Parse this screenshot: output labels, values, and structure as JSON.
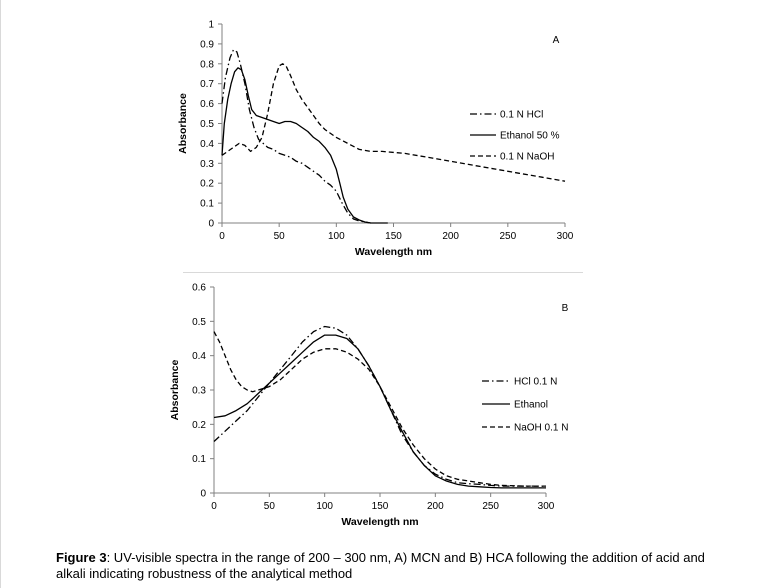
{
  "caption": {
    "label": "Figure 3",
    "text": ": UV-visible spectra in the range of 200 – 300 nm, A) MCN and B) HCA following the addition of acid and alkali indicating robustness of the analytical method"
  },
  "chart_data": [
    {
      "type": "line",
      "panel_label": "A",
      "xlabel": "Wavelength nm",
      "ylabel": "Absorbance",
      "xlim": [
        0,
        300
      ],
      "ylim": [
        0,
        1
      ],
      "xticks": [
        "0",
        "50",
        "100",
        "150",
        "200",
        "250",
        "300"
      ],
      "yticks": [
        "0",
        "0.1",
        "0.2",
        "0.3",
        "0.4",
        "0.5",
        "0.6",
        "0.7",
        "0.8",
        "0.9",
        "1"
      ],
      "grid": false,
      "legend_position": "right",
      "series": [
        {
          "name": "0.1 N HCl",
          "style": "dashdot",
          "color": "#000000",
          "x": [
            0,
            3,
            7,
            10,
            13,
            16,
            20,
            24,
            28,
            32,
            36,
            40,
            45,
            50,
            55,
            60,
            65,
            70,
            75,
            80,
            85,
            90,
            95,
            100,
            105,
            110,
            115,
            120,
            125,
            130
          ],
          "y": [
            0.6,
            0.73,
            0.83,
            0.87,
            0.86,
            0.8,
            0.7,
            0.57,
            0.48,
            0.42,
            0.4,
            0.38,
            0.37,
            0.35,
            0.34,
            0.33,
            0.31,
            0.3,
            0.28,
            0.26,
            0.24,
            0.21,
            0.19,
            0.16,
            0.1,
            0.05,
            0.02,
            0.01,
            0.005,
            0
          ]
        },
        {
          "name": "Ethanol 50 %",
          "style": "solid",
          "color": "#000000",
          "x": [
            0,
            2,
            5,
            8,
            11,
            14,
            17,
            20,
            23,
            26,
            30,
            35,
            40,
            45,
            50,
            55,
            60,
            65,
            70,
            75,
            80,
            85,
            90,
            95,
            100,
            103,
            106,
            110,
            115,
            120,
            125,
            130,
            140,
            145
          ],
          "y": [
            0.34,
            0.5,
            0.62,
            0.7,
            0.76,
            0.78,
            0.77,
            0.72,
            0.64,
            0.57,
            0.54,
            0.53,
            0.52,
            0.51,
            0.5,
            0.51,
            0.51,
            0.5,
            0.48,
            0.46,
            0.43,
            0.41,
            0.38,
            0.34,
            0.27,
            0.2,
            0.13,
            0.07,
            0.03,
            0.015,
            0.005,
            0,
            0,
            0
          ]
        },
        {
          "name": "0.1 N NaOH",
          "style": "dashed",
          "color": "#000000",
          "x": [
            0,
            5,
            10,
            15,
            20,
            25,
            30,
            35,
            40,
            45,
            50,
            53,
            56,
            60,
            65,
            70,
            75,
            80,
            85,
            90,
            100,
            110,
            120,
            130,
            140,
            160,
            180,
            200,
            220,
            240,
            260,
            280,
            300
          ],
          "y": [
            0.34,
            0.36,
            0.38,
            0.4,
            0.39,
            0.36,
            0.38,
            0.43,
            0.55,
            0.7,
            0.79,
            0.8,
            0.79,
            0.74,
            0.67,
            0.62,
            0.58,
            0.54,
            0.5,
            0.47,
            0.43,
            0.4,
            0.37,
            0.36,
            0.36,
            0.35,
            0.33,
            0.31,
            0.29,
            0.27,
            0.25,
            0.23,
            0.21
          ]
        }
      ]
    },
    {
      "type": "line",
      "panel_label": "B",
      "xlabel": "Wavelength nm",
      "ylabel": "Absorbance",
      "xlim": [
        0,
        300
      ],
      "ylim": [
        0,
        0.6
      ],
      "xticks": [
        "0",
        "50",
        "100",
        "150",
        "200",
        "250",
        "300"
      ],
      "yticks": [
        "0",
        "0.1",
        "0.2",
        "0.3",
        "0.4",
        "0.5",
        "0.6"
      ],
      "grid": false,
      "legend_position": "right",
      "series": [
        {
          "name": "HCl 0.1 N",
          "style": "dashdot",
          "color": "#000000",
          "x": [
            0,
            10,
            20,
            30,
            40,
            50,
            60,
            70,
            80,
            90,
            100,
            110,
            120,
            130,
            140,
            150,
            160,
            170,
            180,
            190,
            200,
            210,
            220,
            230,
            240,
            250,
            260,
            280,
            300
          ],
          "y": [
            0.15,
            0.18,
            0.21,
            0.24,
            0.28,
            0.32,
            0.36,
            0.4,
            0.44,
            0.47,
            0.485,
            0.48,
            0.46,
            0.42,
            0.37,
            0.31,
            0.24,
            0.17,
            0.12,
            0.08,
            0.055,
            0.04,
            0.03,
            0.027,
            0.025,
            0.022,
            0.02,
            0.02,
            0.02
          ]
        },
        {
          "name": "Ethanol",
          "style": "solid",
          "color": "#000000",
          "x": [
            0,
            10,
            20,
            30,
            40,
            50,
            60,
            70,
            80,
            90,
            100,
            110,
            120,
            130,
            140,
            150,
            160,
            170,
            180,
            190,
            200,
            210,
            220,
            230,
            240,
            250,
            260,
            280,
            300
          ],
          "y": [
            0.22,
            0.225,
            0.24,
            0.26,
            0.29,
            0.32,
            0.35,
            0.38,
            0.41,
            0.44,
            0.46,
            0.46,
            0.45,
            0.42,
            0.37,
            0.31,
            0.24,
            0.18,
            0.12,
            0.08,
            0.05,
            0.035,
            0.025,
            0.02,
            0.018,
            0.016,
            0.015,
            0.015,
            0.015
          ]
        },
        {
          "name": "NaOH 0.1 N",
          "style": "dashed",
          "color": "#000000",
          "x": [
            0,
            5,
            10,
            15,
            20,
            25,
            30,
            35,
            40,
            50,
            60,
            70,
            80,
            90,
            100,
            110,
            120,
            130,
            140,
            150,
            160,
            170,
            180,
            190,
            200,
            210,
            220,
            230,
            240,
            250,
            260,
            280,
            300
          ],
          "y": [
            0.47,
            0.44,
            0.4,
            0.36,
            0.33,
            0.31,
            0.3,
            0.295,
            0.3,
            0.31,
            0.33,
            0.36,
            0.39,
            0.41,
            0.42,
            0.42,
            0.41,
            0.39,
            0.36,
            0.31,
            0.25,
            0.19,
            0.14,
            0.1,
            0.07,
            0.05,
            0.04,
            0.035,
            0.03,
            0.025,
            0.022,
            0.02,
            0.02
          ]
        }
      ]
    }
  ]
}
